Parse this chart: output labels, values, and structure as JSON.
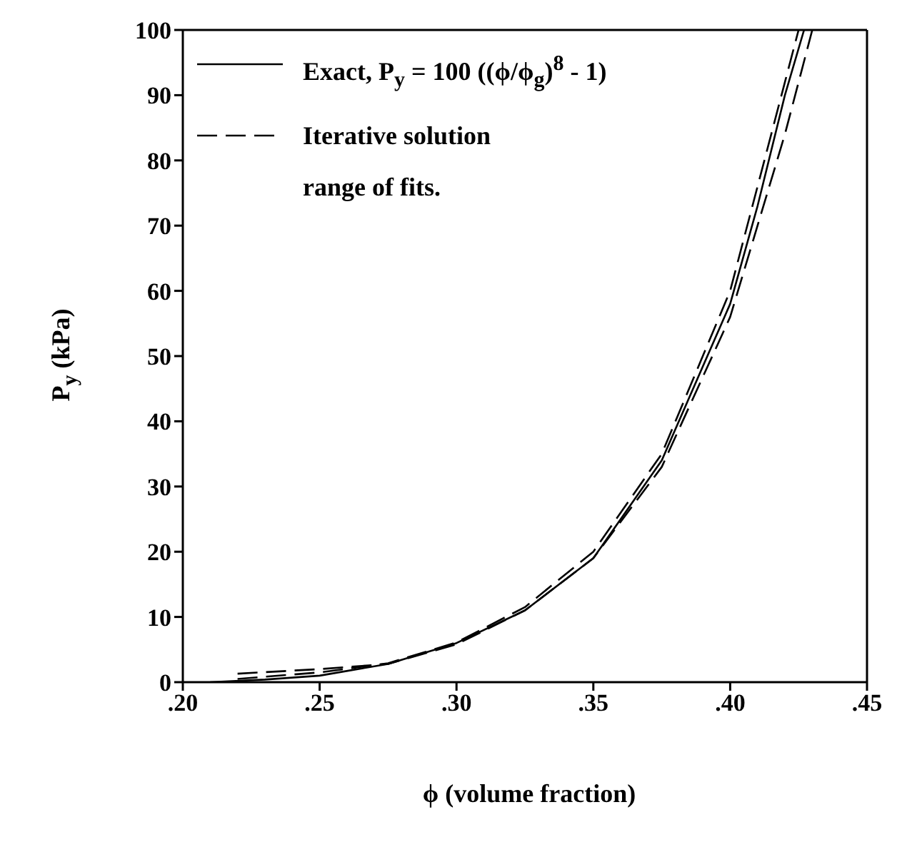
{
  "chart_data": {
    "type": "line",
    "xlabel": "ϕ (volume fraction)",
    "ylabel": "P$_{y}$ (kPa)",
    "xlim": [
      0.2,
      0.45
    ],
    "xticks": [
      {
        "value": 0.2,
        "label": ".20"
      },
      {
        "value": 0.25,
        "label": ".25"
      },
      {
        "value": 0.3,
        "label": ".30"
      },
      {
        "value": 0.35,
        "label": ".35"
      },
      {
        "value": 0.4,
        "label": ".40"
      },
      {
        "value": 0.45,
        "label": ".45"
      }
    ],
    "ylim": [
      0,
      100
    ],
    "yticks": [
      0,
      10,
      20,
      30,
      40,
      50,
      60,
      70,
      80,
      90,
      100
    ],
    "grid": false,
    "legend": "top left",
    "marker": "none",
    "series": [
      {
        "name": "Exact, P$_{y}$ = 100 ((ϕ/ϕ$_{g}$)$^{8}$ - 1)",
        "color": "#000000",
        "line_style": "solid",
        "x": [
          0.21,
          0.23,
          0.25,
          0.275,
          0.3,
          0.325,
          0.35,
          0.375,
          0.4,
          0.41,
          0.42,
          0.427
        ],
        "values": [
          0,
          0.4,
          1,
          2.8,
          6,
          11,
          19,
          34,
          58,
          73,
          90,
          100
        ]
      },
      {
        "name": "Iterative solution\nrange of fits.",
        "color": "#000000",
        "line_style": "dashed",
        "x": [
          0.22,
          0.25,
          0.275,
          0.3,
          0.325,
          0.35,
          0.375,
          0.4,
          0.42,
          0.43
        ],
        "values": [
          1.3,
          2,
          2.8,
          5.8,
          11,
          19,
          33,
          56,
          84,
          100
        ]
      },
      {
        "color": "#000000",
        "line_style": "dashed",
        "x": [
          0.22,
          0.25,
          0.275,
          0.3,
          0.325,
          0.35,
          0.375,
          0.4,
          0.42,
          0.425
        ],
        "values": [
          0.5,
          1.5,
          2.9,
          6.1,
          11.5,
          20,
          35,
          60,
          92,
          100
        ]
      }
    ]
  }
}
